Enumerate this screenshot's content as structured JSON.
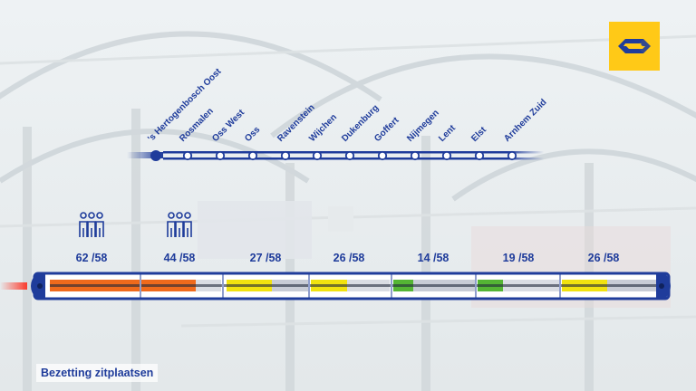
{
  "brand": {
    "logo": "ns-logo-icon",
    "accent": "#ffc917",
    "navy": "#1f3c9b"
  },
  "route": {
    "stations": [
      "'s Hertogenbosch Oost",
      "Rosmalen",
      "Oss West",
      "Oss",
      "Ravenstein",
      "Wijchen",
      "Dukenburg",
      "Goffert",
      "Nijmegen",
      "Lent",
      "Elst",
      "Arnhem Zuid"
    ]
  },
  "train": {
    "coaches": [
      {
        "occupied": "62",
        "seats": "58",
        "icon": "people-group-icon"
      },
      {
        "occupied": "44",
        "seats": "58",
        "icon": "people-group-icon"
      },
      {
        "occupied": "27",
        "seats": "58"
      },
      {
        "occupied": "26",
        "seats": "58"
      },
      {
        "occupied": "14",
        "seats": "58"
      },
      {
        "occupied": "19",
        "seats": "58"
      },
      {
        "occupied": "26",
        "seats": "58"
      }
    ]
  },
  "caption": "Bezetting zitplaatsen"
}
